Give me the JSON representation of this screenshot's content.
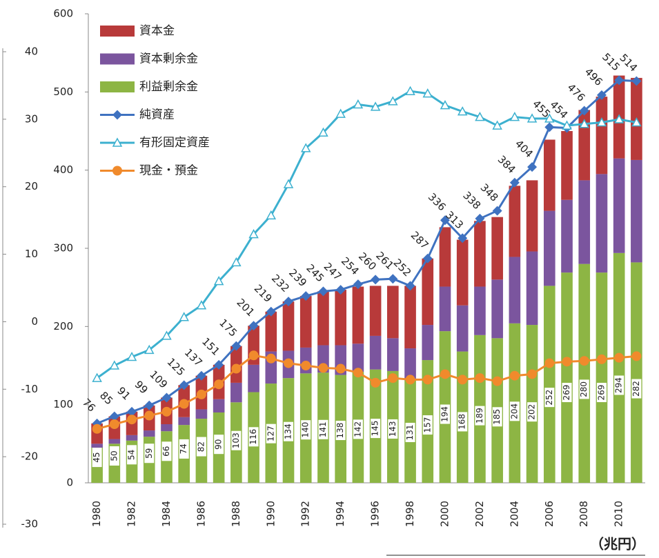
{
  "chart_data": {
    "type": "bar",
    "categories": [
      "1980",
      null,
      "1982",
      null,
      "1984",
      null,
      "1986",
      null,
      "1988",
      null,
      "1990",
      null,
      "1992",
      null,
      "1994",
      null,
      "1996",
      null,
      "1998",
      null,
      "2000",
      null,
      "2002",
      null,
      "2004",
      null,
      "2006",
      null,
      "2008",
      null,
      "2010",
      null
    ],
    "series": [
      {
        "name": "利益剰余金",
        "color": "#8db544",
        "values": [
          45,
          50,
          54,
          59,
          66,
          74,
          82,
          90,
          103,
          116,
          127,
          134,
          140,
          141,
          138,
          142,
          145,
          143,
          131,
          157,
          194,
          168,
          189,
          185,
          204,
          202,
          252,
          269,
          280,
          269,
          294,
          282
        ]
      },
      {
        "name": "資本剰余金",
        "color": "#7b559e",
        "values": [
          5,
          6,
          7,
          8,
          9,
          10,
          12,
          17,
          25,
          35,
          41,
          35,
          33,
          35,
          38,
          36,
          43,
          42,
          41,
          45,
          57,
          59,
          62,
          75,
          85,
          94,
          96,
          93,
          107,
          126,
          121,
          131
        ]
      },
      {
        "name": "資本金",
        "color": "#b83a3a",
        "values": [
          26,
          29,
          30,
          32,
          34,
          41,
          43,
          44,
          47,
          50,
          51,
          63,
          66,
          69,
          71,
          73,
          64,
          67,
          80,
          85,
          76,
          84,
          84,
          80,
          91,
          91,
          91,
          88,
          90,
          99,
          106,
          105
        ]
      },
      {
        "name": "純資産",
        "type": "line",
        "marker": "diamond",
        "color": "#3f72c0",
        "values": [
          76,
          85,
          91,
          99,
          109,
          125,
          137,
          151,
          175,
          201,
          219,
          232,
          239,
          245,
          247,
          254,
          260,
          261,
          252,
          287,
          336,
          313,
          338,
          348,
          384,
          404,
          455,
          454,
          476,
          496,
          515,
          514
        ]
      },
      {
        "name": "有形固定資産",
        "type": "line",
        "marker": "triangle",
        "color": "#3cb0cf",
        "values": [
          134,
          150,
          161,
          170,
          188,
          212,
          227,
          258,
          282,
          318,
          342,
          382,
          428,
          448,
          472,
          484,
          481,
          488,
          501,
          498,
          483,
          475,
          468,
          457,
          468,
          466,
          466,
          457,
          459,
          461,
          465,
          461
        ]
      },
      {
        "name": "現金・預金",
        "type": "line",
        "marker": "circle",
        "color": "#f08a2c",
        "values": [
          69,
          75,
          81,
          86,
          91,
          101,
          113,
          126,
          146,
          163,
          159,
          153,
          150,
          147,
          146,
          141,
          128,
          134,
          132,
          132,
          139,
          132,
          134,
          130,
          137,
          139,
          153,
          155,
          156,
          158,
          160,
          162
        ]
      }
    ],
    "ylim": [
      0,
      600
    ],
    "yticks": [
      0,
      100,
      200,
      300,
      400,
      500,
      600
    ],
    "y2lim": [
      -30,
      40
    ],
    "y2ticks": [
      -30,
      -20,
      -10,
      0,
      10,
      20,
      30,
      40
    ],
    "unit": "（兆円）",
    "legend": "upper left"
  }
}
